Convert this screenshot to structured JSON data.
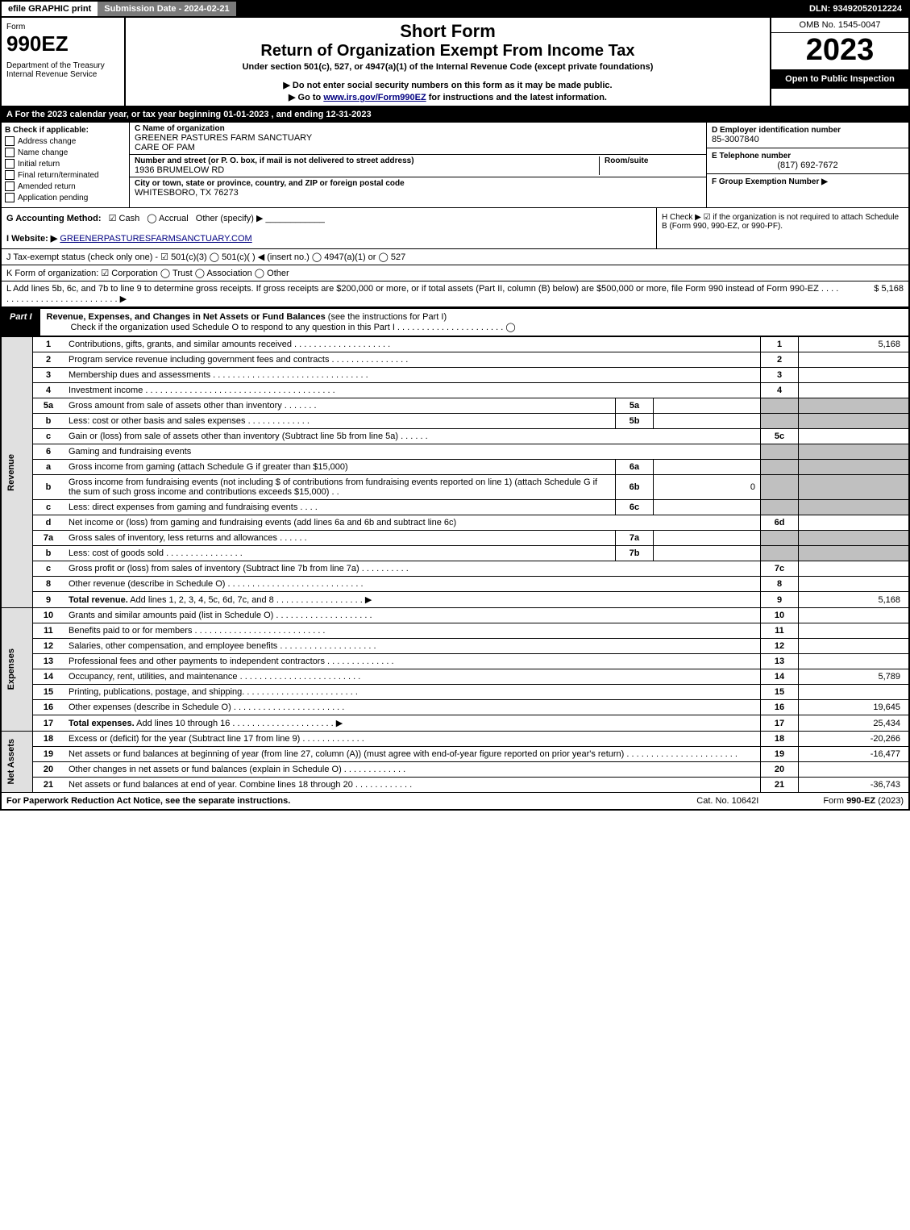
{
  "topbar": {
    "efile": "efile GRAPHIC print",
    "sub_label": "Submission Date - 2024-02-21",
    "dln": "DLN: 93492052012224"
  },
  "header": {
    "form_label": "Form",
    "form_no": "990EZ",
    "dept": "Department of the Treasury\nInternal Revenue Service",
    "title1": "Short Form",
    "title2": "Return of Organization Exempt From Income Tax",
    "sub1": "Under section 501(c), 527, or 4947(a)(1) of the Internal Revenue Code (except private foundations)",
    "sub2": "▶ Do not enter social security numbers on this form as it may be made public.",
    "sub3_pre": "▶ Go to ",
    "sub3_link": "www.irs.gov/Form990EZ",
    "sub3_post": " for instructions and the latest information.",
    "omb": "OMB No. 1545-0047",
    "year": "2023",
    "open": "Open to Public Inspection"
  },
  "line_a": "A  For the 2023 calendar year, or tax year beginning 01-01-2023 , and ending 12-31-2023",
  "sec_b": {
    "label": "B  Check if applicable:",
    "opts": [
      "Address change",
      "Name change",
      "Initial return",
      "Final return/terminated",
      "Amended return",
      "Application pending"
    ],
    "c_label": "C Name of organization",
    "c_name": "GREENER PASTURES FARM SANCTUARY",
    "c_care": "CARE OF PAM",
    "street_label": "Number and street (or P. O. box, if mail is not delivered to street address)",
    "street": "1936 BRUMELOW RD",
    "room_label": "Room/suite",
    "city_label": "City or town, state or province, country, and ZIP or foreign postal code",
    "city": "WHITESBORO, TX  76273",
    "d_label": "D Employer identification number",
    "d_val": "85-3007840",
    "e_label": "E Telephone number",
    "e_val": "(817) 692-7672",
    "f_label": "F Group Exemption Number  ▶"
  },
  "line_g": {
    "label": "G Accounting Method:",
    "opts": [
      "Cash",
      "Accrual",
      "Other (specify) ▶"
    ],
    "checked": 0
  },
  "line_h": "H  Check ▶ ☑ if the organization is not required to attach Schedule B (Form 990, 990-EZ, or 990-PF).",
  "line_i": {
    "label": "I Website: ▶",
    "val": "GREENERPASTURESFARMSANCTUARY.COM"
  },
  "line_j": "J Tax-exempt status (check only one) - ☑ 501(c)(3)  ◯ 501(c)(  ) ◀ (insert no.)  ◯ 4947(a)(1) or  ◯ 527",
  "line_k": "K Form of organization:  ☑ Corporation  ◯ Trust  ◯ Association  ◯ Other",
  "line_l": {
    "text": "L Add lines 5b, 6c, and 7b to line 9 to determine gross receipts. If gross receipts are $200,000 or more, or if total assets (Part II, column (B) below) are $500,000 or more, file Form 990 instead of Form 990-EZ . . . . . . . . . . . . . . . . . . . . . . . . . . . ▶",
    "val": "$ 5,168"
  },
  "part1": {
    "tab": "Part I",
    "title": "Revenue, Expenses, and Changes in Net Assets or Fund Balances",
    "title_note": "(see the instructions for Part I)",
    "check_note": "Check if the organization used Schedule O to respond to any question in this Part I . . . . . . . . . . . . . . . . . . . . . . ◯"
  },
  "vcats": {
    "rev": "Revenue",
    "exp": "Expenses",
    "net": "Net Assets"
  },
  "rows": [
    {
      "n": "1",
      "desc": "Contributions, gifts, grants, and similar amounts received . . . . . . . . . . . . . . . . . . . .",
      "k": "1",
      "v": "5,168"
    },
    {
      "n": "2",
      "desc": "Program service revenue including government fees and contracts . . . . . . . . . . . . . . . .",
      "k": "2",
      "v": ""
    },
    {
      "n": "3",
      "desc": "Membership dues and assessments . . . . . . . . . . . . . . . . . . . . . . . . . . . . . . . .",
      "k": "3",
      "v": ""
    },
    {
      "n": "4",
      "desc": "Investment income . . . . . . . . . . . . . . . . . . . . . . . . . . . . . . . . . . . . . . .",
      "k": "4",
      "v": ""
    },
    {
      "n": "5a",
      "desc": "Gross amount from sale of assets other than inventory . . . . . . .",
      "sub": "5a",
      "subv": "",
      "gray": true
    },
    {
      "n": "b",
      "desc": "Less: cost or other basis and sales expenses . . . . . . . . . . . . .",
      "sub": "5b",
      "subv": "",
      "gray": true
    },
    {
      "n": "c",
      "desc": "Gain or (loss) from sale of assets other than inventory (Subtract line 5b from line 5a) . . . . . .",
      "k": "5c",
      "v": ""
    },
    {
      "n": "6",
      "desc": "Gaming and fundraising events",
      "gray": true
    },
    {
      "n": "a",
      "desc": "Gross income from gaming (attach Schedule G if greater than $15,000)",
      "sub": "6a",
      "subv": "",
      "gray": true
    },
    {
      "n": "b",
      "desc": "Gross income from fundraising events (not including $                    of contributions from fundraising events reported on line 1) (attach Schedule G if the sum of such gross income and contributions exceeds $15,000)    . .",
      "sub": "6b",
      "subv": "0",
      "gray": true
    },
    {
      "n": "c",
      "desc": "Less: direct expenses from gaming and fundraising events   . . . .",
      "sub": "6c",
      "subv": "",
      "gray": true
    },
    {
      "n": "d",
      "desc": "Net income or (loss) from gaming and fundraising events (add lines 6a and 6b and subtract line 6c)",
      "k": "6d",
      "v": ""
    },
    {
      "n": "7a",
      "desc": "Gross sales of inventory, less returns and allowances . . . . . .",
      "sub": "7a",
      "subv": "",
      "gray": true
    },
    {
      "n": "b",
      "desc": "Less: cost of goods sold        . . . . . . . . . . . . . . . .",
      "sub": "7b",
      "subv": "",
      "gray": true
    },
    {
      "n": "c",
      "desc": "Gross profit or (loss) from sales of inventory (Subtract line 7b from line 7a) . . . . . . . . . .",
      "k": "7c",
      "v": ""
    },
    {
      "n": "8",
      "desc": "Other revenue (describe in Schedule O) . . . . . . . . . . . . . . . . . . . . . . . . . . . .",
      "k": "8",
      "v": ""
    },
    {
      "n": "9",
      "desc": "Total revenue. Add lines 1, 2, 3, 4, 5c, 6d, 7c, and 8  . . . . . . . . . . . . . . . . . .   ▶",
      "k": "9",
      "v": "5,168",
      "bold": true
    }
  ],
  "exp_rows": [
    {
      "n": "10",
      "desc": "Grants and similar amounts paid (list in Schedule O) . . . . . . . . . . . . . . . . . . . .",
      "k": "10",
      "v": ""
    },
    {
      "n": "11",
      "desc": "Benefits paid to or for members       . . . . . . . . . . . . . . . . . . . . . . . . . . .",
      "k": "11",
      "v": ""
    },
    {
      "n": "12",
      "desc": "Salaries, other compensation, and employee benefits . . . . . . . . . . . . . . . . . . . .",
      "k": "12",
      "v": ""
    },
    {
      "n": "13",
      "desc": "Professional fees and other payments to independent contractors . . . . . . . . . . . . . .",
      "k": "13",
      "v": ""
    },
    {
      "n": "14",
      "desc": "Occupancy, rent, utilities, and maintenance . . . . . . . . . . . . . . . . . . . . . . . . .",
      "k": "14",
      "v": "5,789"
    },
    {
      "n": "15",
      "desc": "Printing, publications, postage, and shipping. . . . . . . . . . . . . . . . . . . . . . . .",
      "k": "15",
      "v": ""
    },
    {
      "n": "16",
      "desc": "Other expenses (describe in Schedule O)     . . . . . . . . . . . . . . . . . . . . . . .",
      "k": "16",
      "v": "19,645"
    },
    {
      "n": "17",
      "desc": "Total expenses. Add lines 10 through 16      . . . . . . . . . . . . . . . . . . . . .   ▶",
      "k": "17",
      "v": "25,434",
      "bold": true
    }
  ],
  "net_rows": [
    {
      "n": "18",
      "desc": "Excess or (deficit) for the year (Subtract line 17 from line 9)      . . . . . . . . . . . . .",
      "k": "18",
      "v": "-20,266"
    },
    {
      "n": "19",
      "desc": "Net assets or fund balances at beginning of year (from line 27, column (A)) (must agree with end-of-year figure reported on prior year's return) . . . . . . . . . . . . . . . . . . . . . . .",
      "k": "19",
      "v": "-16,477"
    },
    {
      "n": "20",
      "desc": "Other changes in net assets or fund balances (explain in Schedule O) . . . . . . . . . . . . .",
      "k": "20",
      "v": ""
    },
    {
      "n": "21",
      "desc": "Net assets or fund balances at end of year. Combine lines 18 through 20 . . . . . . . . . . . .",
      "k": "21",
      "v": "-36,743"
    }
  ],
  "footer": {
    "left": "For Paperwork Reduction Act Notice, see the separate instructions.",
    "mid": "Cat. No. 10642I",
    "right": "Form 990-EZ (2023)"
  },
  "colors": {
    "black": "#000000",
    "white": "#ffffff",
    "gray_bg": "#c0c0c0",
    "lt_gray": "#e0e0e0",
    "topbar_gray": "#7a7a7a",
    "link": "#000080"
  }
}
